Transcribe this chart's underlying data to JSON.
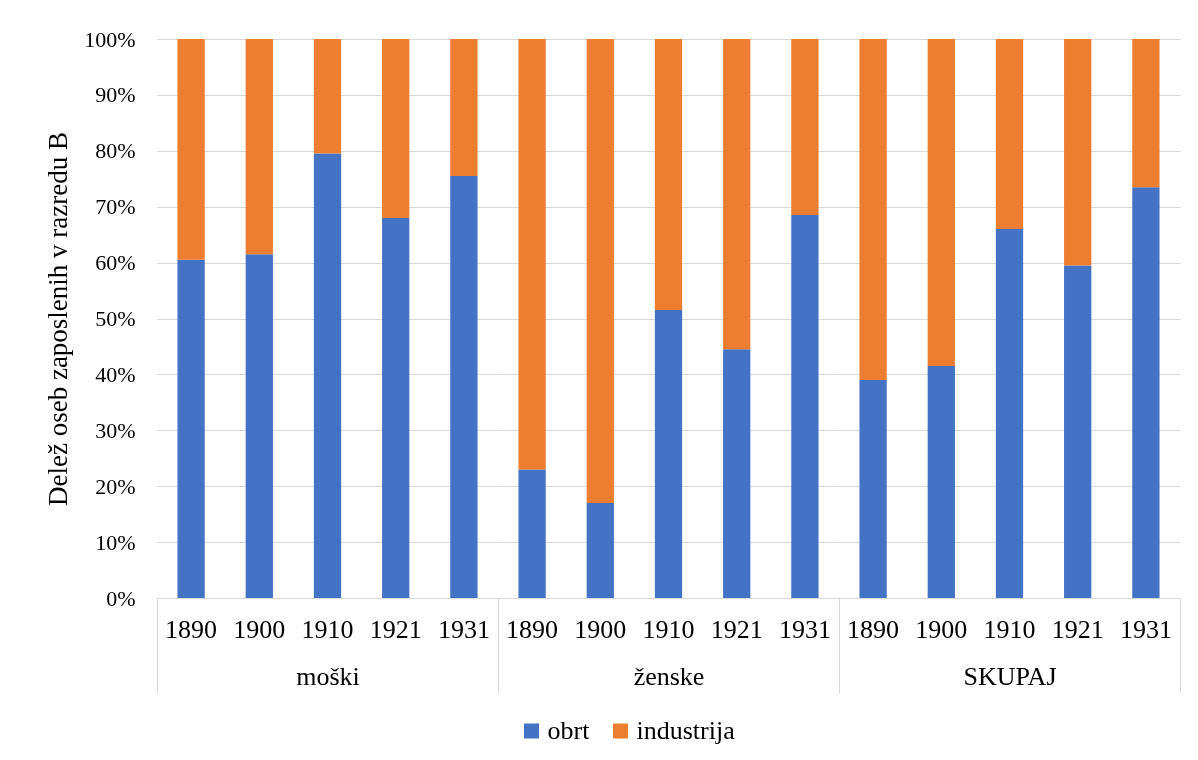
{
  "chart_data": [
    {
      "type": "bar",
      "stacked": true,
      "ylabel": "Delež oseb zaposlenih v razredu B",
      "xlabel": "moški",
      "categories": [
        "1890",
        "1900",
        "1910",
        "1921",
        "1931"
      ],
      "series": [
        {
          "name": "obrt",
          "color": "#4472c4",
          "values": [
            60.5,
            61.5,
            79.5,
            68,
            75.5
          ]
        },
        {
          "name": "industrija",
          "color": "#ed7d31",
          "values": [
            39.5,
            38.5,
            20.5,
            32,
            24.5
          ]
        }
      ],
      "ylim": [
        0,
        100
      ],
      "yticks": [
        {
          "value": 0,
          "label": "0%"
        },
        {
          "value": 10,
          "label": "10%"
        },
        {
          "value": 20,
          "label": "20%"
        },
        {
          "value": 30,
          "label": "30%"
        },
        {
          "value": 40,
          "label": "40%"
        },
        {
          "value": 50,
          "label": "50%"
        },
        {
          "value": 60,
          "label": "60%"
        },
        {
          "value": 70,
          "label": "70%"
        },
        {
          "value": 80,
          "label": "80%"
        },
        {
          "value": 90,
          "label": "90%"
        },
        {
          "value": 100,
          "label": "100%"
        }
      ],
      "grid": "y",
      "legend": "bottom"
    },
    {
      "type": "bar",
      "stacked": true,
      "xlabel": "ženske",
      "categories": [
        "1890",
        "1900",
        "1910",
        "1921",
        "1931"
      ],
      "series": [
        {
          "color": "#4472c4",
          "values": [
            23,
            17,
            51.5,
            44.5,
            68.5
          ]
        },
        {
          "color": "#ed7d31",
          "values": [
            77,
            83,
            48.5,
            55.5,
            31.5
          ]
        }
      ],
      "ylim": [
        0,
        100
      ],
      "yticks": [
        0,
        10,
        20,
        30,
        40,
        50,
        60,
        70,
        80,
        90,
        100
      ],
      "grid": "y",
      "tick_labels": "x"
    },
    {
      "type": "bar",
      "stacked": true,
      "xlabel": "SKUPAJ",
      "categories": [
        "1890",
        "1900",
        "1910",
        "1921",
        "1931"
      ],
      "series": [
        {
          "color": "#4472c4",
          "values": [
            39,
            41.5,
            66,
            59.5,
            73.5
          ]
        },
        {
          "color": "#ed7d31",
          "values": [
            61,
            58.5,
            34,
            40.5,
            26.5
          ]
        }
      ],
      "ylim": [
        0,
        100
      ],
      "yticks": [
        0,
        10,
        20,
        30,
        40,
        50,
        60,
        70,
        80,
        90,
        100
      ],
      "grid": "y",
      "tick_labels": "x"
    }
  ]
}
